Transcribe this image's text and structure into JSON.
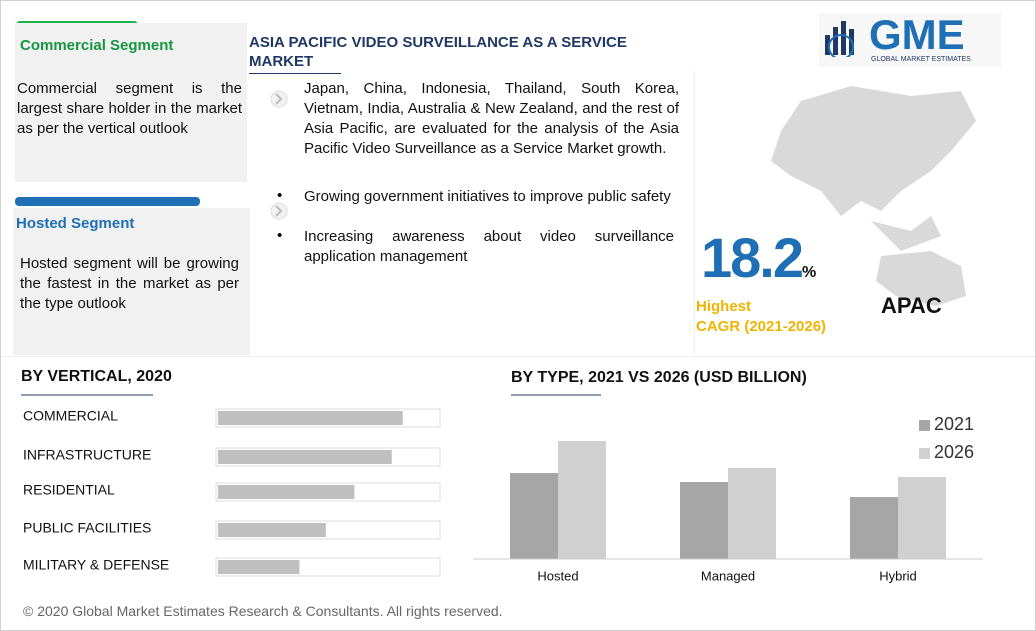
{
  "segments": [
    {
      "title": "Commercial Segment",
      "text": "Commercial segment is the largest share holder in the market as per the vertical outlook"
    },
    {
      "title": "Hosted Segment",
      "text": "Hosted segment will be growing the fastest in the market as per the type outlook"
    }
  ],
  "header": {
    "title": "ASIA PACIFIC VIDEO SURVEILLANCE AS A SERVICE MARKET"
  },
  "bullets": [
    "Japan, China, Indonesia, Thailand, South Korea, Vietnam, India, Australia & New Zealand, and the rest of Asia Pacific, are evaluated for the analysis of the Asia Pacific Video Surveillance as a Service Market growth.",
    "Growing government initiatives to improve public safety",
    "Increasing awareness about video surveillance application management"
  ],
  "stat": {
    "value": "18.2",
    "unit": "%",
    "label_1": "Highest",
    "label_2": "CAGR (2021-2026)",
    "region": "APAC"
  },
  "logo": {
    "name": "GME",
    "tagline": "GLOBAL MARKET ESTIMATES"
  },
  "chart_data": [
    {
      "type": "bar",
      "orientation": "horizontal",
      "title": "BY VERTICAL, 2020",
      "categories": [
        "COMMERCIAL",
        "INFRASTRUCTURE",
        "RESIDENTIAL",
        "PUBLIC FACILITIES",
        "MILITARY & DEFENSE"
      ],
      "values": [
        84,
        79,
        62,
        49,
        37
      ],
      "color": "#bfbfbf",
      "xlim": [
        0,
        100
      ]
    },
    {
      "type": "bar",
      "title": "BY TYPE,  2021 VS 2026 (USD BILLION)",
      "categories": [
        "Hosted",
        "Managed",
        "Hybrid"
      ],
      "series": [
        {
          "name": "2021",
          "color": "#a6a6a6",
          "values": [
            86,
            77,
            62
          ]
        },
        {
          "name": "2026",
          "color": "#d0d0d0",
          "values": [
            118,
            91,
            82
          ]
        }
      ],
      "ylim": [
        0,
        130
      ],
      "legend": "top-right"
    }
  ],
  "footer": "© 2020 Global Market Estimates Research & Consultants. All rights reserved."
}
